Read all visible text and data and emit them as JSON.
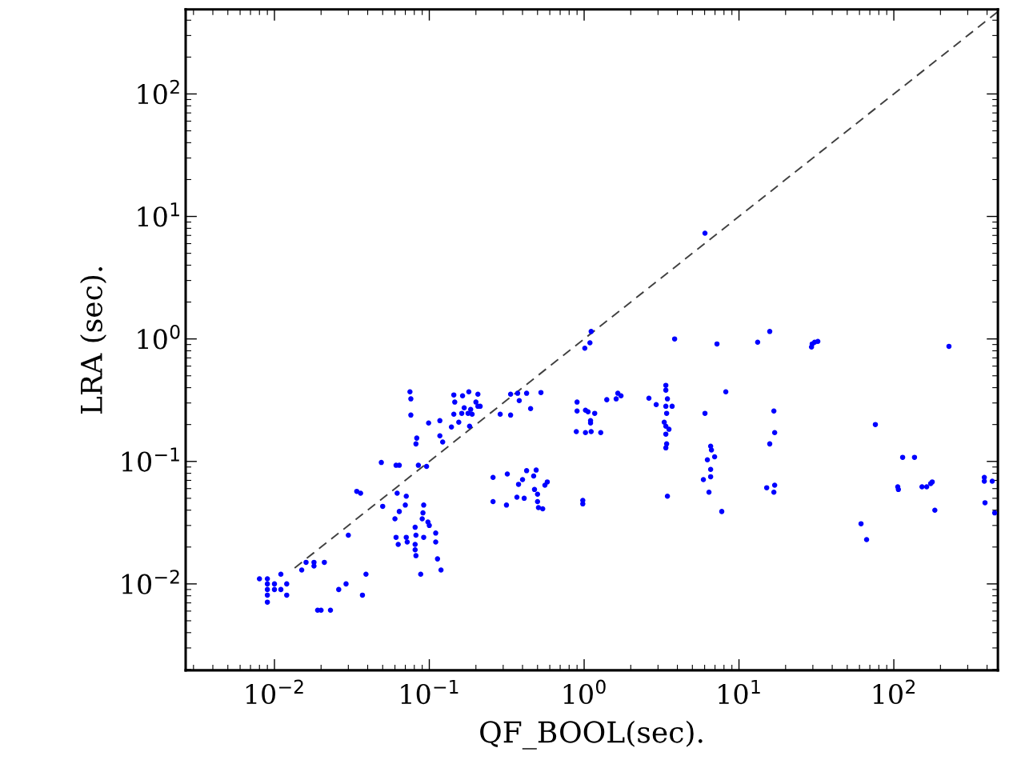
{
  "chart_data": {
    "type": "scatter",
    "xlabel": "QF_BOOL(sec).",
    "ylabel": "LRA (sec).",
    "log": "xy",
    "grid": false,
    "legend": false,
    "xlim": [
      0.00267,
      470
    ],
    "ylim": [
      0.00197,
      490
    ],
    "xticks": [
      {
        "value": 0.01,
        "label": "10$^{−2}$"
      },
      {
        "value": 0.1,
        "label": "10$^{−1}$"
      },
      {
        "value": 1,
        "label": "10$^{0}$"
      },
      {
        "value": 10,
        "label": "10$^{1}$"
      },
      {
        "value": 100,
        "label": "10$^{2}$"
      }
    ],
    "yticks": [
      {
        "value": 0.01,
        "label": "10$^{−2}$"
      },
      {
        "value": 0.1,
        "label": "10$^{−1}$"
      },
      {
        "value": 1,
        "label": "10$^{0}$"
      },
      {
        "value": 10,
        "label": "10$^{1}$"
      },
      {
        "value": 100,
        "label": "10$^{2}$"
      }
    ],
    "series": [
      {
        "color": "#0000ff",
        "marker": "circle",
        "x": [
          0.008,
          0.009,
          0.009,
          0.009,
          0.009,
          0.009,
          0.01,
          0.01,
          0.011,
          0.011,
          0.012,
          0.012,
          0.015,
          0.016,
          0.018,
          0.018,
          0.021,
          0.019,
          0.02,
          0.023,
          0.026,
          0.029,
          0.037,
          0.039,
          0.03,
          0.034,
          0.036,
          0.049,
          0.061,
          0.064,
          0.05,
          0.062,
          0.071,
          0.07,
          0.064,
          0.06,
          0.081,
          0.092,
          0.091,
          0.09,
          0.098,
          0.1,
          0.061,
          0.063,
          0.071,
          0.072,
          0.082,
          0.092,
          0.11,
          0.11,
          0.081,
          0.081,
          0.082,
          0.113,
          0.119,
          0.088,
          0.085,
          0.096,
          0.075,
          0.076,
          0.076,
          0.099,
          0.117,
          0.117,
          0.122,
          0.083,
          0.082,
          0.139,
          0.155,
          0.182,
          0.144,
          0.162,
          0.144,
          0.146,
          0.164,
          0.18,
          0.206,
          0.2,
          0.168,
          0.185,
          0.206,
          0.213,
          0.189,
          0.178,
          0.335,
          0.372,
          0.425,
          0.526,
          0.381,
          0.451,
          0.287,
          0.335,
          0.258,
          0.319,
          0.425,
          0.49,
          0.472,
          0.4,
          0.377,
          0.578,
          0.558,
          0.478,
          0.5,
          0.258,
          0.315,
          0.368,
          0.41,
          0.5,
          0.507,
          0.54,
          1.11,
          1.09,
          1.01,
          3.84,
          0.9,
          0.9,
          1.02,
          1.06,
          1.17,
          1.1,
          1.1,
          0.89,
          1.02,
          1.11,
          1.28,
          1.4,
          1.65,
          1.73,
          1.61,
          2.62,
          2.92,
          3.37,
          3.37,
          3.45,
          3.37,
          3.7,
          3.41,
          3.29,
          3.37,
          3.53,
          3.37,
          3.41,
          3.37,
          3.45,
          0.98,
          0.98,
          6.03,
          7.21,
          13.2,
          15.8,
          29.7,
          8.22,
          6.03,
          16.8,
          17.0,
          15.8,
          6.56,
          6.64,
          6.25,
          6.96,
          6.56,
          6.56,
          5.89,
          6.4,
          7.74,
          15.1,
          17.0,
          16.8,
          30.8,
          29.4,
          32.3,
          227,
          76.0,
          114,
          136,
          106,
          107,
          152,
          163,
          173,
          177,
          184,
          61.4,
          66.7,
          384,
          384,
          432,
          388,
          448
        ],
        "values": [
          0.011,
          0.011,
          0.01,
          0.009,
          0.0081,
          0.0071,
          0.01,
          0.009,
          0.012,
          0.009,
          0.01,
          0.0081,
          0.013,
          0.015,
          0.015,
          0.014,
          0.015,
          0.0061,
          0.0061,
          0.0061,
          0.009,
          0.01,
          0.0081,
          0.012,
          0.025,
          0.057,
          0.055,
          0.098,
          0.093,
          0.093,
          0.043,
          0.055,
          0.052,
          0.044,
          0.039,
          0.034,
          0.029,
          0.044,
          0.038,
          0.034,
          0.032,
          0.03,
          0.024,
          0.021,
          0.024,
          0.022,
          0.025,
          0.024,
          0.026,
          0.022,
          0.021,
          0.019,
          0.017,
          0.016,
          0.013,
          0.012,
          0.093,
          0.091,
          0.37,
          0.324,
          0.239,
          0.206,
          0.215,
          0.162,
          0.144,
          0.155,
          0.139,
          0.191,
          0.209,
          0.194,
          0.243,
          0.247,
          0.349,
          0.305,
          0.343,
          0.37,
          0.354,
          0.305,
          0.274,
          0.266,
          0.282,
          0.282,
          0.243,
          0.247,
          0.354,
          0.36,
          0.36,
          0.365,
          0.314,
          0.27,
          0.243,
          0.239,
          0.074,
          0.079,
          0.084,
          0.085,
          0.076,
          0.071,
          0.065,
          0.068,
          0.064,
          0.059,
          0.054,
          0.047,
          0.044,
          0.051,
          0.05,
          0.047,
          0.042,
          0.041,
          1.15,
          0.93,
          0.84,
          1.0,
          0.305,
          0.258,
          0.262,
          0.254,
          0.247,
          0.215,
          0.206,
          0.175,
          0.172,
          0.175,
          0.172,
          0.319,
          0.36,
          0.343,
          0.324,
          0.328,
          0.291,
          0.418,
          0.382,
          0.324,
          0.282,
          0.282,
          0.247,
          0.209,
          0.194,
          0.183,
          0.167,
          0.139,
          0.129,
          0.052,
          0.048,
          0.045,
          7.29,
          0.91,
          0.94,
          1.15,
          0.91,
          0.37,
          0.247,
          0.258,
          0.172,
          0.139,
          0.133,
          0.124,
          0.103,
          0.109,
          0.086,
          0.075,
          0.071,
          0.056,
          0.039,
          0.061,
          0.064,
          0.056,
          0.94,
          0.86,
          0.955,
          0.87,
          0.2,
          0.108,
          0.108,
          0.062,
          0.059,
          0.062,
          0.062,
          0.066,
          0.068,
          0.04,
          0.031,
          0.023,
          0.074,
          0.069,
          0.069,
          0.046,
          0.038
        ]
      },
      {
        "type": "line",
        "color": "#404040",
        "line_style": "dashed",
        "marker": "none",
        "x": [
          0.0135,
          470
        ],
        "values": [
          0.0135,
          470
        ]
      }
    ]
  }
}
